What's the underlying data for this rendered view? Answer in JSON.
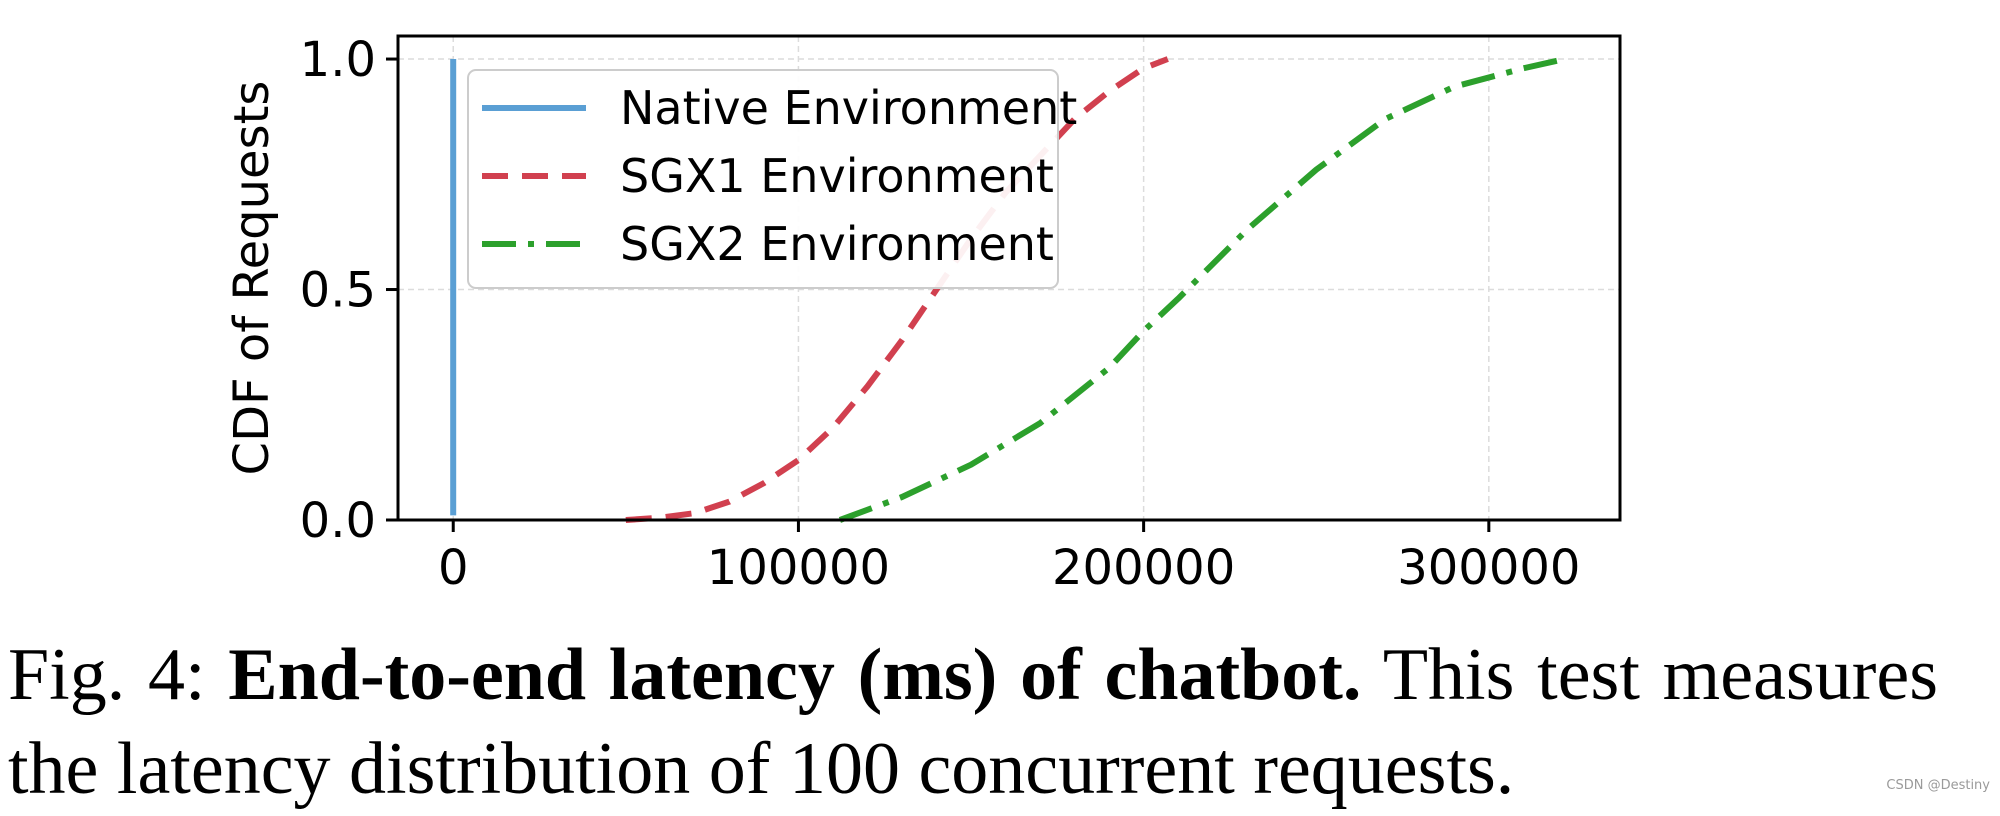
{
  "chart_data": {
    "type": "line",
    "ylabel": "CDF of Requests",
    "xlabel": "",
    "xlim": [
      -16000,
      338000
    ],
    "ylim": [
      0,
      1.05
    ],
    "xticks": [
      0,
      100000,
      200000,
      300000
    ],
    "xtick_labels": [
      "0",
      "100000",
      "200000",
      "300000"
    ],
    "yticks": [
      0,
      0.5,
      1
    ],
    "ytick_labels": [
      "0.0",
      "0.5",
      "1.0"
    ],
    "grid": true,
    "legend_position": "top-left",
    "series": [
      {
        "name": "Native Environment",
        "color": "#5a9fd4",
        "style": "solid",
        "x": [
          0,
          0
        ],
        "y": [
          0.01,
          1.0
        ]
      },
      {
        "name": "SGX1 Environment",
        "color": "#d1404f",
        "style": "dashed",
        "x": [
          50000,
          60000,
          70000,
          80000,
          90000,
          100000,
          110000,
          120000,
          130000,
          140000,
          150000,
          160000,
          170000,
          180000,
          190000,
          200000,
          207000
        ],
        "y": [
          0.0,
          0.005,
          0.015,
          0.04,
          0.08,
          0.13,
          0.2,
          0.29,
          0.39,
          0.5,
          0.61,
          0.71,
          0.79,
          0.87,
          0.93,
          0.98,
          1.0
        ]
      },
      {
        "name": "SGX2 Environment",
        "color": "#2ca02c",
        "style": "dashdot",
        "x": [
          112000,
          130000,
          150000,
          170000,
          190000,
          200000,
          210000,
          230000,
          250000,
          270000,
          290000,
          310000,
          322000
        ],
        "y": [
          0.0,
          0.05,
          0.12,
          0.21,
          0.33,
          0.41,
          0.48,
          0.63,
          0.76,
          0.87,
          0.94,
          0.98,
          1.0
        ]
      }
    ]
  },
  "caption": {
    "prefix": "Fig. 4:",
    "bold": "End-to-end latency (ms) of chatbot.",
    "text": "This test measures the latency distribution of 100 concurrent requests."
  },
  "watermark": "CSDN @Destiny"
}
